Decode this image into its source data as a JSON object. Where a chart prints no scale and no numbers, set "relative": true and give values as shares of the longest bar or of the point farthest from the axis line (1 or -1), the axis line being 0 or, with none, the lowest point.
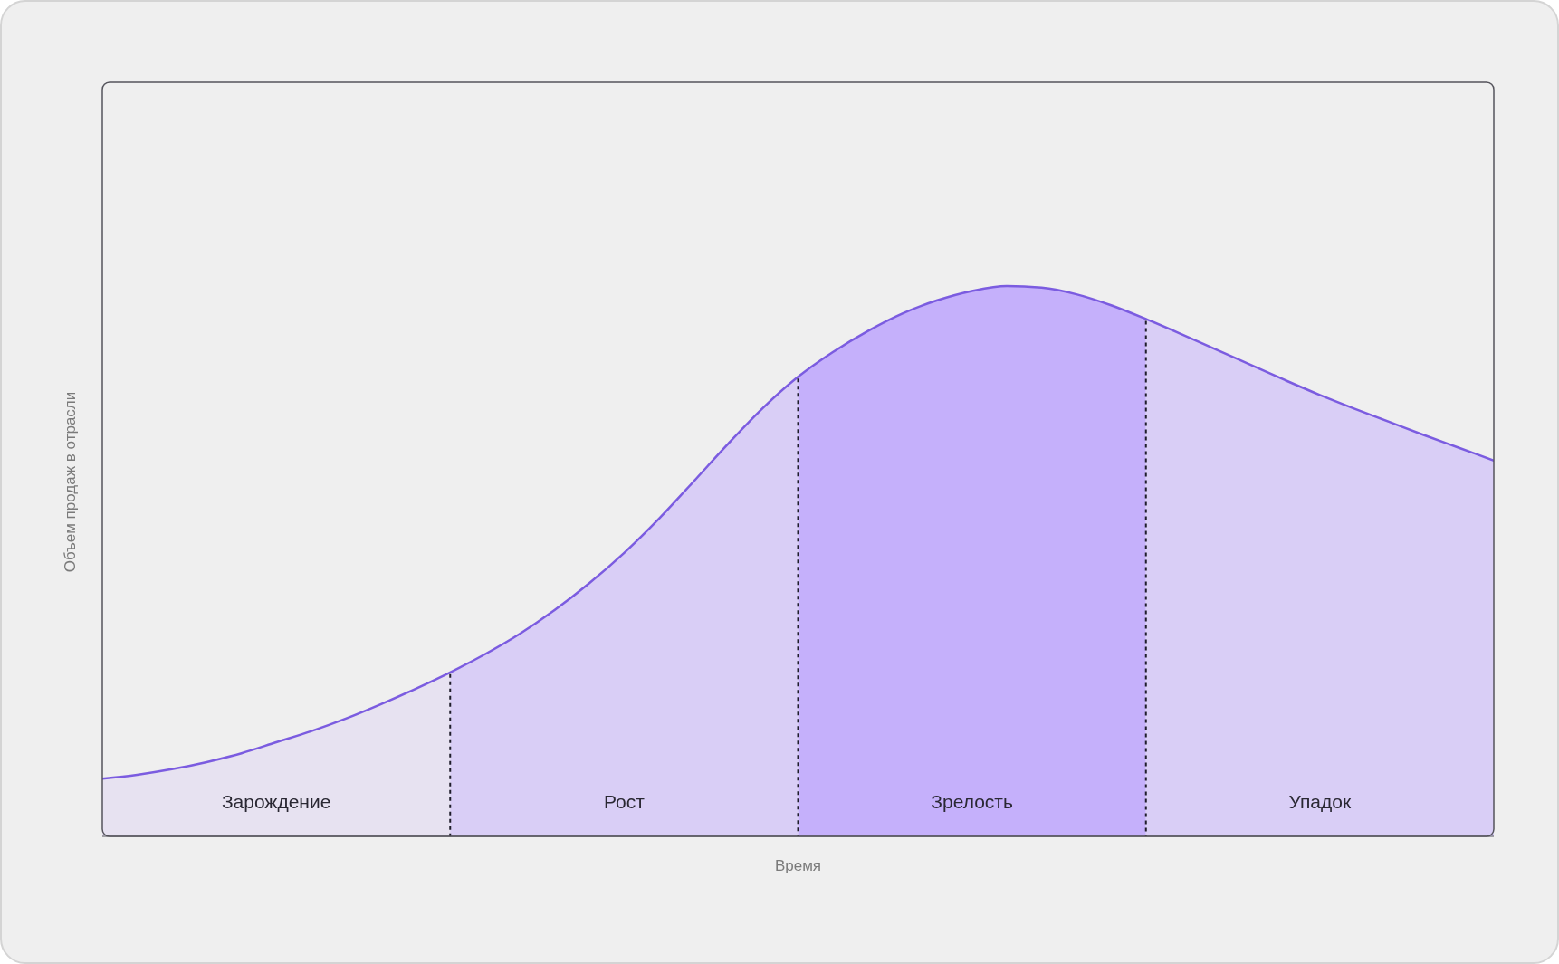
{
  "chart_data": {
    "type": "area",
    "relative": true,
    "xlabel": "Время",
    "ylabel": "Объем продаж в отрасли",
    "categories": [
      null,
      null,
      null,
      null,
      null,
      null,
      null,
      null,
      null,
      null,
      null,
      null,
      null,
      null,
      null,
      null,
      null,
      null,
      null,
      null,
      null,
      null,
      null,
      null,
      null,
      null,
      null,
      null,
      null,
      null,
      null,
      null,
      null,
      null,
      null,
      null,
      null,
      null,
      null,
      null,
      null
    ],
    "series": [
      {
        "name": "Зарождение",
        "color": "#e7e2f1",
        "values": [
          0.105,
          0.112,
          0.122,
          0.135,
          0.151,
          0.171,
          0.191,
          0.214,
          0.24,
          0.268,
          0.298,
          null,
          null,
          null,
          null,
          null,
          null,
          null,
          null,
          null,
          null,
          null,
          null,
          null,
          null,
          null,
          null,
          null,
          null,
          null,
          null,
          null,
          null,
          null,
          null,
          null,
          null,
          null,
          null,
          null,
          null
        ]
      },
      {
        "name": "Рост",
        "color": "#d9cef6",
        "values": [
          null,
          null,
          null,
          null,
          null,
          null,
          null,
          null,
          null,
          null,
          0.298,
          0.331,
          0.368,
          0.411,
          0.46,
          0.515,
          0.577,
          0.645,
          0.714,
          0.779,
          0.835,
          null,
          null,
          null,
          null,
          null,
          null,
          null,
          null,
          null,
          null,
          null,
          null,
          null,
          null,
          null,
          null,
          null,
          null,
          null,
          null
        ]
      },
      {
        "name": "Зрелость",
        "color": "#c5b0fb",
        "values": [
          null,
          null,
          null,
          null,
          null,
          null,
          null,
          null,
          null,
          null,
          null,
          null,
          null,
          null,
          null,
          null,
          null,
          null,
          null,
          null,
          0.835,
          0.88,
          0.918,
          0.95,
          0.974,
          0.991,
          1,
          0.997,
          0.985,
          0.965,
          0.94,
          null,
          null,
          null,
          null,
          null,
          null,
          null,
          null,
          null,
          null
        ]
      },
      {
        "name": "Упадок",
        "color": "#d9cef6",
        "values": [
          null,
          null,
          null,
          null,
          null,
          null,
          null,
          null,
          null,
          null,
          null,
          null,
          null,
          null,
          null,
          null,
          null,
          null,
          null,
          null,
          null,
          null,
          null,
          null,
          null,
          null,
          null,
          null,
          null,
          null,
          0.94,
          0.913,
          0.885,
          0.857,
          0.829,
          0.802,
          0.777,
          0.753,
          0.729,
          0.706,
          0.683
        ]
      },
      {
        "type": "line",
        "color": "#7b5ce0",
        "values": [
          0.105,
          0.112,
          0.122,
          0.135,
          0.151,
          0.171,
          0.191,
          0.214,
          0.24,
          0.268,
          0.298,
          0.331,
          0.368,
          0.411,
          0.46,
          0.515,
          0.577,
          0.645,
          0.714,
          0.779,
          0.835,
          0.88,
          0.918,
          0.95,
          0.974,
          0.991,
          1,
          0.997,
          0.985,
          0.965,
          0.94,
          0.913,
          0.885,
          0.857,
          0.829,
          0.802,
          0.777,
          0.753,
          0.729,
          0.706,
          0.683
        ]
      }
    ]
  }
}
